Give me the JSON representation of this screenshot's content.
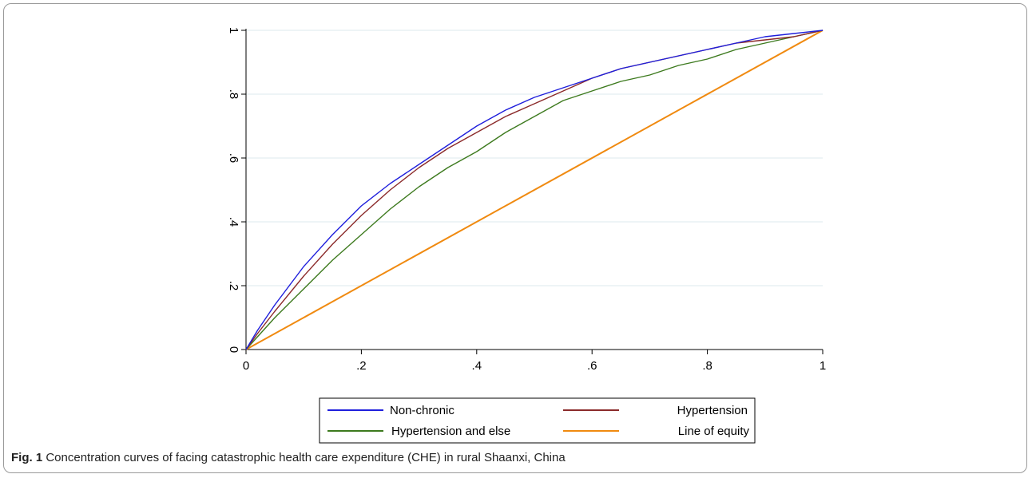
{
  "caption": {
    "label": "Fig. 1",
    "text": "Concentration curves of facing catastrophic health care expenditure (CHE) in rural Shaanxi, China"
  },
  "chart_data": {
    "type": "line",
    "title": "",
    "xlabel": "",
    "ylabel": "",
    "xlim": [
      0,
      1
    ],
    "ylim": [
      0,
      1
    ],
    "x_ticks": [
      "0",
      ".2",
      ".4",
      ".6",
      ".8",
      "1"
    ],
    "y_ticks": [
      "0",
      ".2",
      ".4",
      ".6",
      ".8",
      "1"
    ],
    "grid": "horizontal",
    "legend_position": "bottom",
    "series": [
      {
        "name": "Non-chronic",
        "color": "#1f1fdc",
        "x": [
          0,
          0.02,
          0.05,
          0.1,
          0.15,
          0.2,
          0.25,
          0.3,
          0.35,
          0.4,
          0.45,
          0.5,
          0.55,
          0.6,
          0.65,
          0.7,
          0.75,
          0.8,
          0.85,
          0.9,
          0.95,
          1
        ],
        "y": [
          0,
          0.06,
          0.14,
          0.26,
          0.36,
          0.45,
          0.52,
          0.58,
          0.64,
          0.7,
          0.75,
          0.79,
          0.82,
          0.85,
          0.88,
          0.9,
          0.92,
          0.94,
          0.96,
          0.98,
          0.99,
          1
        ]
      },
      {
        "name": "Hypertension",
        "color": "#8b2a2a",
        "x": [
          0,
          0.02,
          0.05,
          0.1,
          0.15,
          0.2,
          0.25,
          0.3,
          0.35,
          0.4,
          0.45,
          0.5,
          0.55,
          0.6,
          0.65,
          0.7,
          0.75,
          0.8,
          0.85,
          0.9,
          0.95,
          1
        ],
        "y": [
          0,
          0.05,
          0.12,
          0.23,
          0.33,
          0.42,
          0.5,
          0.57,
          0.63,
          0.68,
          0.73,
          0.77,
          0.81,
          0.85,
          0.88,
          0.9,
          0.92,
          0.94,
          0.96,
          0.97,
          0.98,
          1
        ]
      },
      {
        "name": "Hypertension and else",
        "color": "#3d7a1e",
        "x": [
          0,
          0.02,
          0.05,
          0.1,
          0.15,
          0.2,
          0.25,
          0.3,
          0.35,
          0.4,
          0.45,
          0.5,
          0.55,
          0.6,
          0.65,
          0.7,
          0.75,
          0.8,
          0.85,
          0.9,
          0.95,
          1
        ],
        "y": [
          0,
          0.04,
          0.1,
          0.19,
          0.28,
          0.36,
          0.44,
          0.51,
          0.57,
          0.62,
          0.68,
          0.73,
          0.78,
          0.81,
          0.84,
          0.86,
          0.89,
          0.91,
          0.94,
          0.96,
          0.98,
          1
        ]
      },
      {
        "name": "Line of equity",
        "color": "#f08a10",
        "x": [
          0,
          1
        ],
        "y": [
          0,
          1
        ]
      }
    ]
  }
}
